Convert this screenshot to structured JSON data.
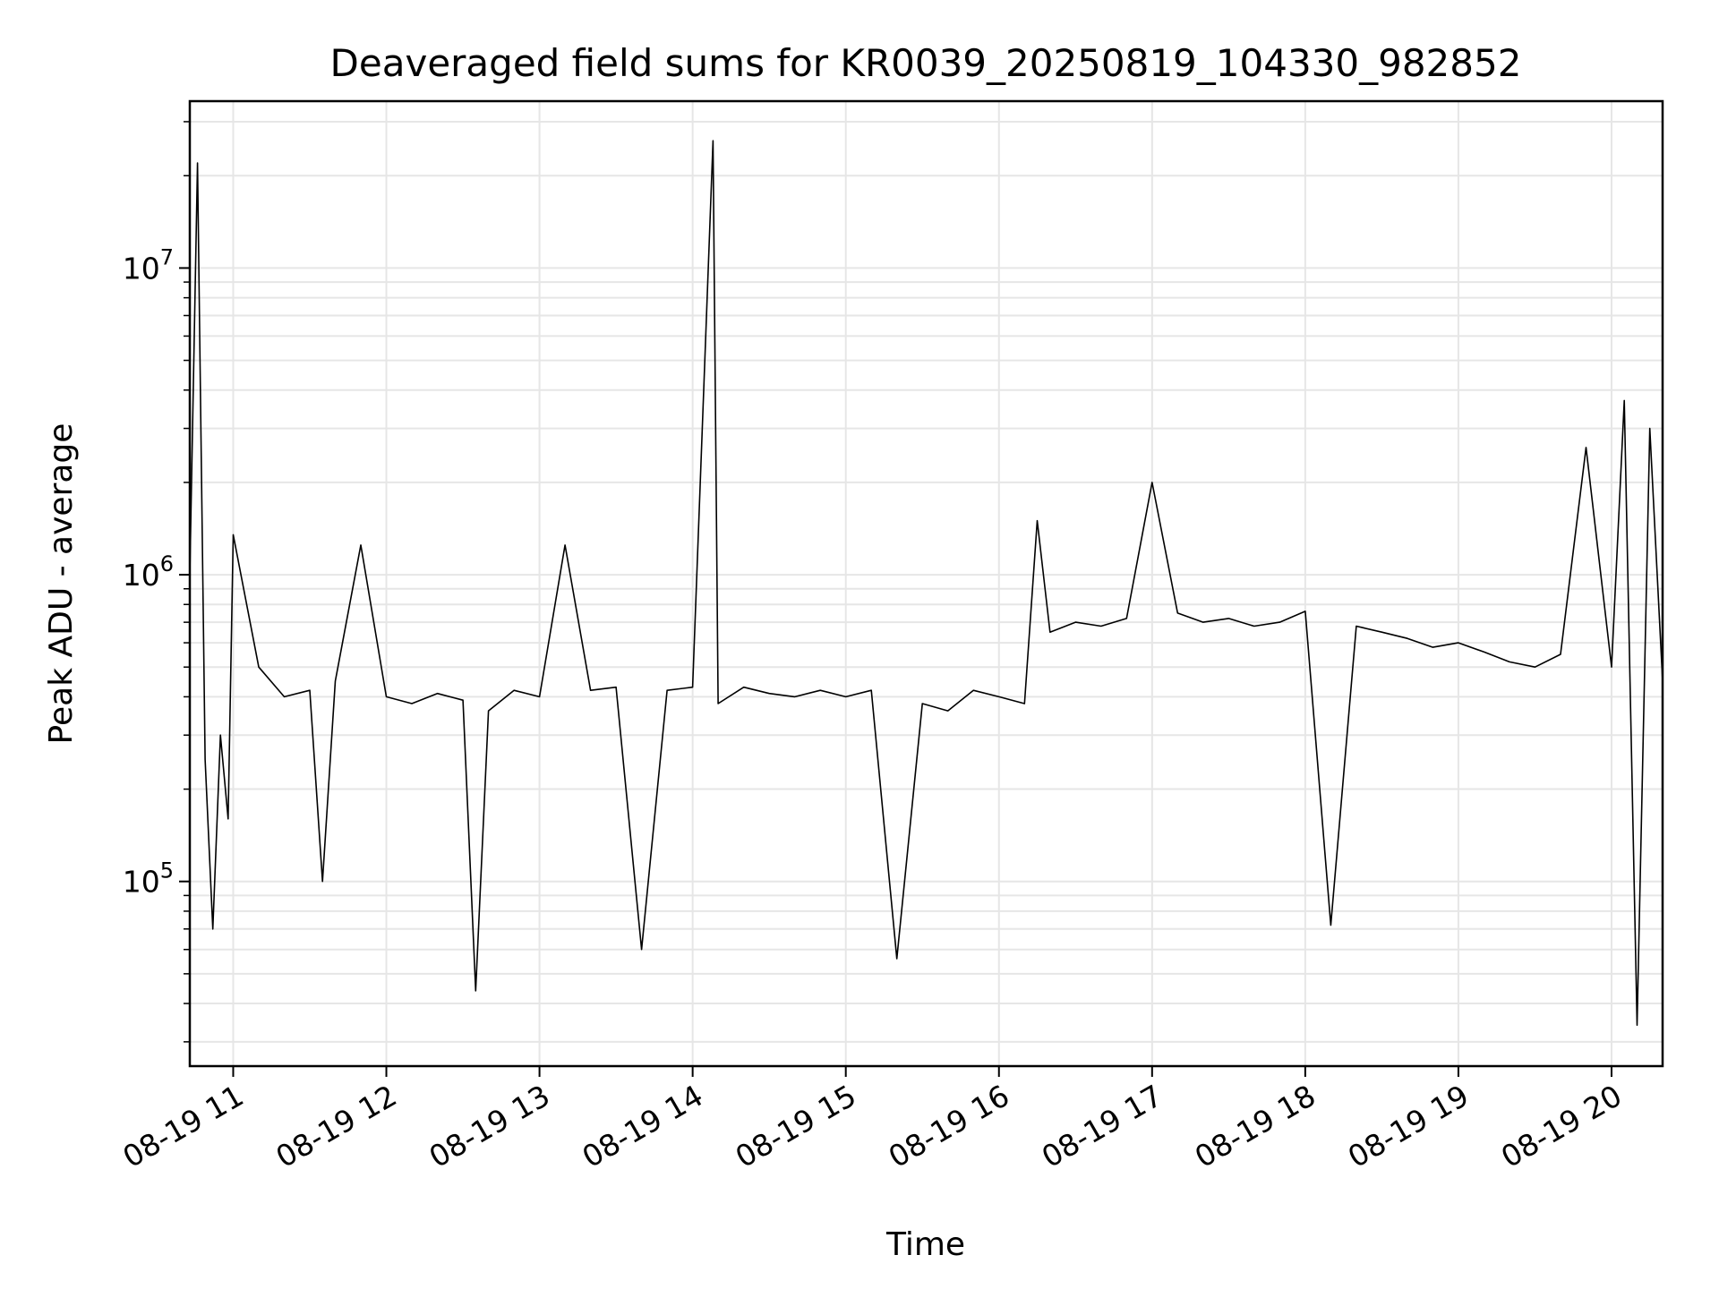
{
  "chart_data": {
    "type": "line",
    "title": "Deaveraged field sums for KR0039_20250819_104330_982852",
    "xlabel": "Time",
    "ylabel": "Peak ADU - average",
    "yscale": "log",
    "grid": true,
    "line_color": "#000000",
    "grid_color": "#e6e6e6",
    "xlim": [
      "2025-08-19 10:43",
      "2025-08-19 20:20"
    ],
    "ylim": [
      25000,
      35000000
    ],
    "xticks": [
      {
        "label": "08-19 11",
        "time": "2025-08-19 11:00"
      },
      {
        "label": "08-19 12",
        "time": "2025-08-19 12:00"
      },
      {
        "label": "08-19 13",
        "time": "2025-08-19 13:00"
      },
      {
        "label": "08-19 14",
        "time": "2025-08-19 14:00"
      },
      {
        "label": "08-19 15",
        "time": "2025-08-19 15:00"
      },
      {
        "label": "08-19 16",
        "time": "2025-08-19 16:00"
      },
      {
        "label": "08-19 17",
        "time": "2025-08-19 17:00"
      },
      {
        "label": "08-19 18",
        "time": "2025-08-19 18:00"
      },
      {
        "label": "08-19 19",
        "time": "2025-08-19 19:00"
      },
      {
        "label": "08-19 20",
        "time": "2025-08-19 20:00"
      }
    ],
    "yticks": [
      {
        "base": "10",
        "exp": "5",
        "value": 100000
      },
      {
        "base": "10",
        "exp": "6",
        "value": 1000000
      },
      {
        "base": "10",
        "exp": "7",
        "value": 10000000
      }
    ],
    "series": [
      {
        "x": [
          "2025-08-19 10:43",
          "2025-08-19 10:46",
          "2025-08-19 10:49",
          "2025-08-19 10:52",
          "2025-08-19 10:55",
          "2025-08-19 10:58",
          "2025-08-19 11:00",
          "2025-08-19 11:10",
          "2025-08-19 11:20",
          "2025-08-19 11:30",
          "2025-08-19 11:35",
          "2025-08-19 11:40",
          "2025-08-19 11:50",
          "2025-08-19 12:00",
          "2025-08-19 12:10",
          "2025-08-19 12:20",
          "2025-08-19 12:30",
          "2025-08-19 12:35",
          "2025-08-19 12:40",
          "2025-08-19 12:50",
          "2025-08-19 13:00",
          "2025-08-19 13:10",
          "2025-08-19 13:20",
          "2025-08-19 13:30",
          "2025-08-19 13:40",
          "2025-08-19 13:50",
          "2025-08-19 14:00",
          "2025-08-19 14:08",
          "2025-08-19 14:10",
          "2025-08-19 14:20",
          "2025-08-19 14:30",
          "2025-08-19 14:40",
          "2025-08-19 14:50",
          "2025-08-19 15:00",
          "2025-08-19 15:10",
          "2025-08-19 15:20",
          "2025-08-19 15:30",
          "2025-08-19 15:40",
          "2025-08-19 15:50",
          "2025-08-19 16:00",
          "2025-08-19 16:10",
          "2025-08-19 16:15",
          "2025-08-19 16:20",
          "2025-08-19 16:30",
          "2025-08-19 16:40",
          "2025-08-19 16:50",
          "2025-08-19 17:00",
          "2025-08-19 17:10",
          "2025-08-19 17:20",
          "2025-08-19 17:30",
          "2025-08-19 17:40",
          "2025-08-19 17:50",
          "2025-08-19 18:00",
          "2025-08-19 18:10",
          "2025-08-19 18:20",
          "2025-08-19 18:30",
          "2025-08-19 18:40",
          "2025-08-19 18:50",
          "2025-08-19 19:00",
          "2025-08-19 19:10",
          "2025-08-19 19:20",
          "2025-08-19 19:30",
          "2025-08-19 19:40",
          "2025-08-19 19:50",
          "2025-08-19 20:00",
          "2025-08-19 20:05",
          "2025-08-19 20:10",
          "2025-08-19 20:15",
          "2025-08-19 20:20"
        ],
        "y": [
          1000000,
          22000000,
          250000,
          70000,
          300000,
          160000,
          1350000,
          500000,
          400000,
          420000,
          100000,
          450000,
          1250000,
          400000,
          380000,
          410000,
          390000,
          44000,
          360000,
          420000,
          400000,
          1250000,
          420000,
          430000,
          60000,
          420000,
          430000,
          26000000,
          380000,
          430000,
          410000,
          400000,
          420000,
          400000,
          420000,
          56000,
          380000,
          360000,
          420000,
          400000,
          380000,
          1500000,
          650000,
          700000,
          680000,
          720000,
          2000000,
          750000,
          700000,
          720000,
          680000,
          700000,
          760000,
          72000,
          680000,
          650000,
          620000,
          580000,
          600000,
          560000,
          520000,
          500000,
          550000,
          2600000,
          500000,
          3700000,
          34000,
          3000000,
          450000
        ]
      }
    ]
  }
}
